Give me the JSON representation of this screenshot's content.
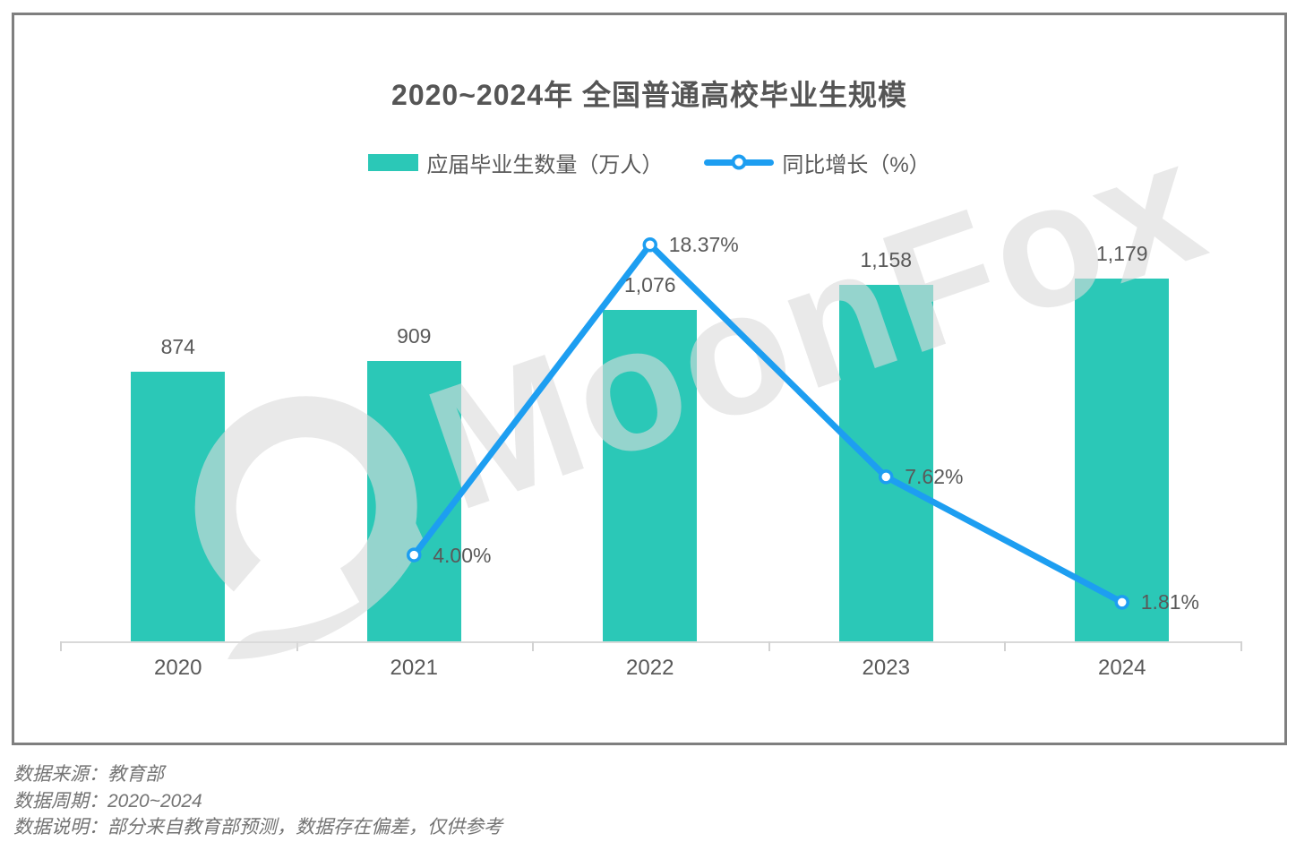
{
  "chart": {
    "title": "2020~2024年 全国普通高校毕业生规模",
    "legend": [
      {
        "label": "应届毕业生数量（万人）",
        "type": "bar",
        "color": "#2bc8b7"
      },
      {
        "label": "同比增长（%）",
        "type": "line",
        "color": "#1d9ef1"
      }
    ],
    "watermark": "MoonFox",
    "colors": {
      "bar": "#2bc8b7",
      "line": "#1d9ef1",
      "label_text": "#595959",
      "axis": "#d9d9d9",
      "frame_border": "#7f7f7f",
      "watermark": "#dcdcdc"
    }
  },
  "chart_data": {
    "type": "bar",
    "combo": "bar+line",
    "title": "2020~2024年 全国普通高校毕业生规模",
    "categories": [
      "2020",
      "2021",
      "2022",
      "2023",
      "2024"
    ],
    "series": [
      {
        "name": "应届毕业生数量（万人）",
        "type": "bar",
        "color": "#2bc8b7",
        "values": [
          874,
          909,
          1076,
          1158,
          1179
        ],
        "labels": [
          "874",
          "909",
          "1,076",
          "1,158",
          "1,179"
        ]
      },
      {
        "name": "同比增长（%）",
        "type": "line",
        "color": "#1d9ef1",
        "values": [
          null,
          4.0,
          18.37,
          7.62,
          1.81
        ],
        "labels": [
          null,
          "4.00%",
          "18.37%",
          "7.62%",
          "1.81%"
        ]
      }
    ],
    "xlabel": "",
    "ylabel": "",
    "grid": false,
    "legend_position": "top-center",
    "value_axis_hidden": true
  },
  "footer": {
    "lines": [
      "数据来源：教育部",
      "数据周期：2020~2024",
      "数据说明：部分来自教育部预测，数据存在偏差，仅供参考"
    ]
  }
}
